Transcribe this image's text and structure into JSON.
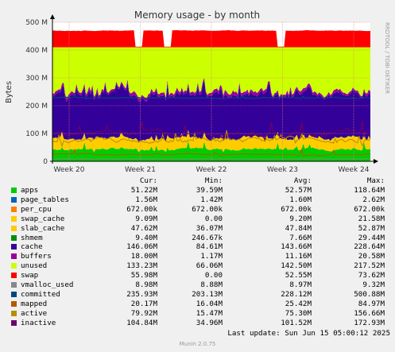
{
  "chart_data": {
    "type": "area",
    "title": "Memory usage - by month",
    "ylabel": "Bytes",
    "side_label": "RRDTOOL / TOBI OETIKER",
    "ylim": [
      0,
      500
    ],
    "y_ticks": [
      0,
      100,
      200,
      300,
      400,
      500
    ],
    "y_tick_labels": [
      "0",
      "100 M",
      "200 M",
      "300 M",
      "400 M",
      "500 M"
    ],
    "x_tick_labels": [
      "Week 20",
      "Week 21",
      "Week 22",
      "Week 23",
      "Week 24"
    ],
    "grid": true,
    "stack_order_bottom_to_top": [
      "apps",
      "page_tables",
      "per_cpu",
      "swap_cache",
      "slab_cache",
      "shmem",
      "cache",
      "buffers",
      "unused",
      "swap"
    ],
    "approx_stack_tops_M": {
      "apps": 45,
      "slab_cache": 85,
      "cache": 240,
      "buffers": 250,
      "unused": 410,
      "swap": 470
    },
    "line_series": [
      "vmalloc_used",
      "committed",
      "mapped",
      "active",
      "inactive"
    ]
  },
  "colors": {
    "background": "#f0f0f0",
    "plot_bg": "#ffffff",
    "grid": "#e08080",
    "apps": "#00cc00",
    "page_tables": "#0066b3",
    "per_cpu": "#ff8000",
    "swap_cache": "#ffcc00",
    "slab_cache": "#ffcc00",
    "shmem": "#008f00",
    "cache": "#330099",
    "buffers": "#990099",
    "unused": "#ccff00",
    "swap": "#ff0000",
    "vmalloc_used": "#888888",
    "committed": "#00487d",
    "mapped": "#b35a00",
    "active": "#b38f00",
    "inactive": "#6b006b"
  },
  "legend": {
    "headers": {
      "cur": "Cur:",
      "min": "Min:",
      "avg": "Avg:",
      "max": "Max:"
    },
    "rows": [
      {
        "name": "apps",
        "color": "#00cc00",
        "cur": "51.22M",
        "min": "39.59M",
        "avg": "52.57M",
        "max": "118.64M"
      },
      {
        "name": "page_tables",
        "color": "#0066b3",
        "cur": "1.56M",
        "min": "1.42M",
        "avg": "1.60M",
        "max": "2.62M"
      },
      {
        "name": "per_cpu",
        "color": "#ff8000",
        "cur": "672.00k",
        "min": "672.00k",
        "avg": "672.00k",
        "max": "672.00k"
      },
      {
        "name": "swap_cache",
        "color": "#ffcc00",
        "cur": "9.09M",
        "min": "0.00",
        "avg": "9.20M",
        "max": "21.58M"
      },
      {
        "name": "slab_cache",
        "color": "#ffcc00",
        "cur": "47.62M",
        "min": "36.07M",
        "avg": "47.84M",
        "max": "52.87M"
      },
      {
        "name": "shmem",
        "color": "#008f00",
        "cur": "9.40M",
        "min": "246.67k",
        "avg": "7.66M",
        "max": "29.44M"
      },
      {
        "name": "cache",
        "color": "#330099",
        "cur": "146.06M",
        "min": "84.61M",
        "avg": "143.66M",
        "max": "228.64M"
      },
      {
        "name": "buffers",
        "color": "#990099",
        "cur": "18.00M",
        "min": "1.17M",
        "avg": "11.16M",
        "max": "20.58M"
      },
      {
        "name": "unused",
        "color": "#ccff00",
        "cur": "133.23M",
        "min": "66.06M",
        "avg": "142.50M",
        "max": "217.52M"
      },
      {
        "name": "swap",
        "color": "#ff0000",
        "cur": "55.98M",
        "min": "0.00",
        "avg": "52.55M",
        "max": "73.62M"
      },
      {
        "name": "vmalloc_used",
        "color": "#888888",
        "cur": "8.98M",
        "min": "8.88M",
        "avg": "8.97M",
        "max": "9.32M"
      },
      {
        "name": "committed",
        "color": "#00487d",
        "cur": "235.93M",
        "min": "203.13M",
        "avg": "228.12M",
        "max": "500.88M"
      },
      {
        "name": "mapped",
        "color": "#b35a00",
        "cur": "20.17M",
        "min": "16.04M",
        "avg": "25.42M",
        "max": "84.97M"
      },
      {
        "name": "active",
        "color": "#b38f00",
        "cur": "79.92M",
        "min": "15.47M",
        "avg": "75.30M",
        "max": "156.66M"
      },
      {
        "name": "inactive",
        "color": "#6b006b",
        "cur": "104.84M",
        "min": "34.96M",
        "avg": "101.52M",
        "max": "172.93M"
      }
    ]
  },
  "footer": {
    "last_update": "Last update: Sun Jun 15 05:00:12 2025",
    "munin": "Munin 2.0.75"
  }
}
